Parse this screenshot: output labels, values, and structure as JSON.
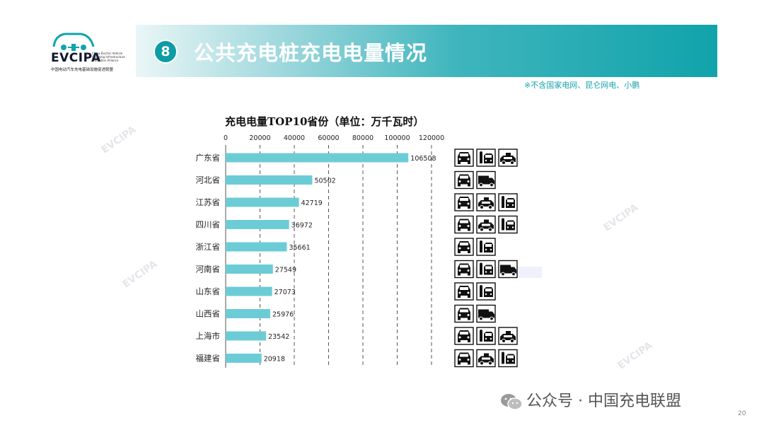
{
  "header": {
    "logo_text": "EVCIPA",
    "logo_tagline": "China Electric Vehicle\nCharging Infrastructure\nPromotion Alliance",
    "logo_subtitle": "中国电动汽车充电基础设施促进联盟",
    "section_number": "8",
    "title": "公共充电桩充电电量情况",
    "note": "※不含国家电网、昆仑网电、小鹏"
  },
  "chart_data": {
    "type": "bar",
    "orientation": "horizontal",
    "title": "充电电量TOP10省份（单位：万千瓦时）",
    "categories": [
      "广东省",
      "河北省",
      "江苏省",
      "四川省",
      "浙江省",
      "河南省",
      "山东省",
      "山西省",
      "上海市",
      "福建省"
    ],
    "values": [
      106508,
      50502,
      42719,
      36972,
      35661,
      27549,
      27073,
      25976,
      23542,
      20918
    ],
    "xlim": [
      0,
      120000
    ],
    "x_ticks": [
      0,
      20000,
      40000,
      60000,
      80000,
      100000,
      120000
    ],
    "grid": "vertical dashed",
    "bar_color": "#6cccd6",
    "vehicle_icons": [
      [
        "car",
        "bus",
        "taxi"
      ],
      [
        "car",
        "truck"
      ],
      [
        "car",
        "taxi",
        "bus"
      ],
      [
        "car",
        "taxi",
        "bus"
      ],
      [
        "car",
        "bus"
      ],
      [
        "car",
        "bus",
        "truck"
      ],
      [
        "car",
        "bus"
      ],
      [
        "car",
        "truck"
      ],
      [
        "car",
        "bus",
        "taxi"
      ],
      [
        "car",
        "taxi",
        "bus"
      ]
    ]
  },
  "footer": {
    "text": "公众号 · 中国充电联盟",
    "page_number": "20"
  },
  "watermark": "EVCIPA",
  "colors": {
    "accent": "#11a3ab",
    "bar": "#6cccd6",
    "note": "#16a3ad"
  }
}
